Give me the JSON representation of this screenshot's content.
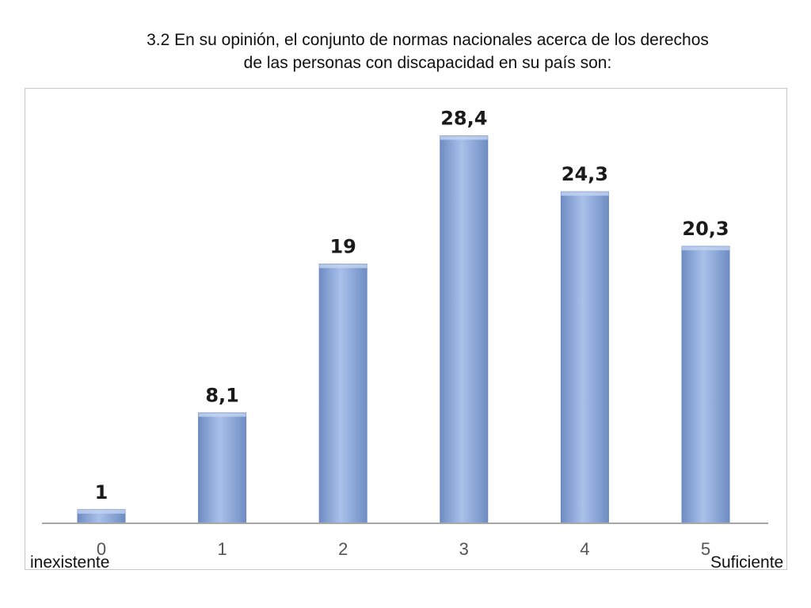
{
  "title": {
    "line1": "3.2 En su opinión, el conjunto de normas nacionales acerca de los derechos",
    "line2": "de las personas con discapacidad en su país son:"
  },
  "scale_labels": {
    "low": "inexistente",
    "high": "Suficiente"
  },
  "chart_data": {
    "type": "bar",
    "title": "3.2 En su opinión, el conjunto de normas nacionales acerca de los derechos de las personas con discapacidad en su país son:",
    "categories": [
      "0",
      "1",
      "2",
      "3",
      "4",
      "5"
    ],
    "values": [
      1,
      8.1,
      19,
      28.4,
      24.3,
      20.3
    ],
    "data_labels": [
      "1",
      "8,1",
      "19",
      "28,4",
      "24,3",
      "20,3"
    ],
    "xlabel": "",
    "ylabel": "",
    "ylim": [
      0,
      30
    ],
    "grid": false,
    "legend": "none",
    "colors": {
      "bar": "#8eaade",
      "bar_light": "#a9c1ea",
      "bar_dark": "#6f8dc4",
      "axis": "#a6a6a6"
    }
  }
}
